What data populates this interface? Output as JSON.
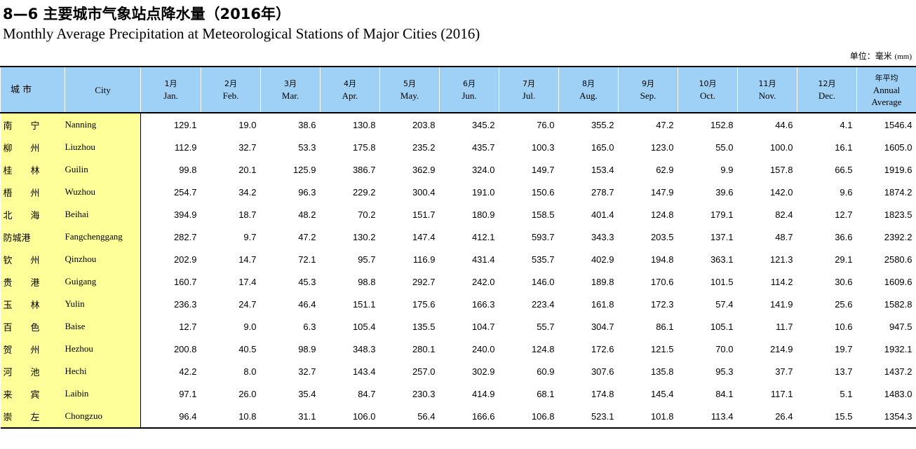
{
  "title_cn": "8—6 主要城市气象站点降水量（2016年）",
  "title_en": "Monthly Average Precipitation at Meteorological Stations of Major Cities (2016)",
  "unit_cn": "单位：毫米",
  "unit_en": "(mm)",
  "headers": {
    "city_cn": "城    市",
    "city_en": "City",
    "months": [
      {
        "cn": "1月",
        "en": "Jan."
      },
      {
        "cn": "2月",
        "en": "Feb."
      },
      {
        "cn": "3月",
        "en": "Mar."
      },
      {
        "cn": "4月",
        "en": "Apr."
      },
      {
        "cn": "5月",
        "en": "May."
      },
      {
        "cn": "6月",
        "en": "Jun."
      },
      {
        "cn": "7月",
        "en": "Jul."
      },
      {
        "cn": "8月",
        "en": "Aug."
      },
      {
        "cn": "9月",
        "en": "Sep."
      },
      {
        "cn": "10月",
        "en": "Oct."
      },
      {
        "cn": "11月",
        "en": "Nov."
      },
      {
        "cn": "12月",
        "en": "Dec."
      }
    ],
    "annual_cn": "年平均",
    "annual_en1": "Annual",
    "annual_en2": "Average"
  },
  "rows": [
    {
      "cn": "南　　宁",
      "en": "Nanning",
      "values": [
        "129.1",
        "19.0",
        "38.6",
        "130.8",
        "203.8",
        "345.2",
        "76.0",
        "355.2",
        "47.2",
        "152.8",
        "44.6",
        "4.1",
        "1546.4"
      ]
    },
    {
      "cn": "柳　　州",
      "en": "Liuzhou",
      "values": [
        "112.9",
        "32.7",
        "53.3",
        "175.8",
        "235.2",
        "435.7",
        "100.3",
        "165.0",
        "123.0",
        "55.0",
        "100.0",
        "16.1",
        "1605.0"
      ]
    },
    {
      "cn": "桂　　林",
      "en": "Guilin",
      "values": [
        "99.8",
        "20.1",
        "125.9",
        "386.7",
        "362.9",
        "324.0",
        "149.7",
        "153.4",
        "62.9",
        "9.9",
        "157.8",
        "66.5",
        "1919.6"
      ]
    },
    {
      "cn": "梧　　州",
      "en": "Wuzhou",
      "values": [
        "254.7",
        "34.2",
        "96.3",
        "229.2",
        "300.4",
        "191.0",
        "150.6",
        "278.7",
        "147.9",
        "39.6",
        "142.0",
        "9.6",
        "1874.2"
      ]
    },
    {
      "cn": "北　　海",
      "en": "Beihai",
      "values": [
        "394.9",
        "18.7",
        "48.2",
        "70.2",
        "151.7",
        "180.9",
        "158.5",
        "401.4",
        "124.8",
        "179.1",
        "82.4",
        "12.7",
        "1823.5"
      ]
    },
    {
      "cn": "防城港",
      "en": "Fangchenggang",
      "values": [
        "282.7",
        "9.7",
        "47.2",
        "130.2",
        "147.4",
        "412.1",
        "593.7",
        "343.3",
        "203.5",
        "137.1",
        "48.7",
        "36.6",
        "2392.2"
      ]
    },
    {
      "cn": "钦　　州",
      "en": "Qinzhou",
      "values": [
        "202.9",
        "14.7",
        "72.1",
        "95.7",
        "116.9",
        "431.4",
        "535.7",
        "402.9",
        "194.8",
        "363.1",
        "121.3",
        "29.1",
        "2580.6"
      ]
    },
    {
      "cn": "贵　　港",
      "en": "Guigang",
      "values": [
        "160.7",
        "17.4",
        "45.3",
        "98.8",
        "292.7",
        "242.0",
        "146.0",
        "189.8",
        "170.6",
        "101.5",
        "114.2",
        "30.6",
        "1609.6"
      ]
    },
    {
      "cn": "玉　　林",
      "en": "Yulin",
      "values": [
        "236.3",
        "24.7",
        "46.4",
        "151.1",
        "175.6",
        "166.3",
        "223.4",
        "161.8",
        "172.3",
        "57.4",
        "141.9",
        "25.6",
        "1582.8"
      ]
    },
    {
      "cn": "百　　色",
      "en": "Baise",
      "values": [
        "12.7",
        "9.0",
        "6.3",
        "105.4",
        "135.5",
        "104.7",
        "55.7",
        "304.7",
        "86.1",
        "105.1",
        "11.7",
        "10.6",
        "947.5"
      ]
    },
    {
      "cn": "贺　　州",
      "en": "Hezhou",
      "values": [
        "200.8",
        "40.5",
        "98.9",
        "348.3",
        "280.1",
        "240.0",
        "124.8",
        "172.6",
        "121.5",
        "70.0",
        "214.9",
        "19.7",
        "1932.1"
      ]
    },
    {
      "cn": "河　　池",
      "en": "Hechi",
      "values": [
        "42.2",
        "8.0",
        "32.7",
        "143.4",
        "257.0",
        "302.9",
        "60.9",
        "307.6",
        "135.8",
        "95.3",
        "37.7",
        "13.7",
        "1437.2"
      ]
    },
    {
      "cn": "来　　宾",
      "en": "Laibin",
      "values": [
        "97.1",
        "26.0",
        "35.4",
        "84.7",
        "230.3",
        "414.9",
        "68.1",
        "174.8",
        "145.4",
        "84.1",
        "117.1",
        "5.1",
        "1483.0"
      ]
    },
    {
      "cn": "崇　　左",
      "en": "Chongzuo",
      "values": [
        "96.4",
        "10.8",
        "31.1",
        "106.0",
        "56.4",
        "166.6",
        "106.8",
        "523.1",
        "101.8",
        "113.4",
        "26.4",
        "15.5",
        "1354.3"
      ]
    }
  ]
}
